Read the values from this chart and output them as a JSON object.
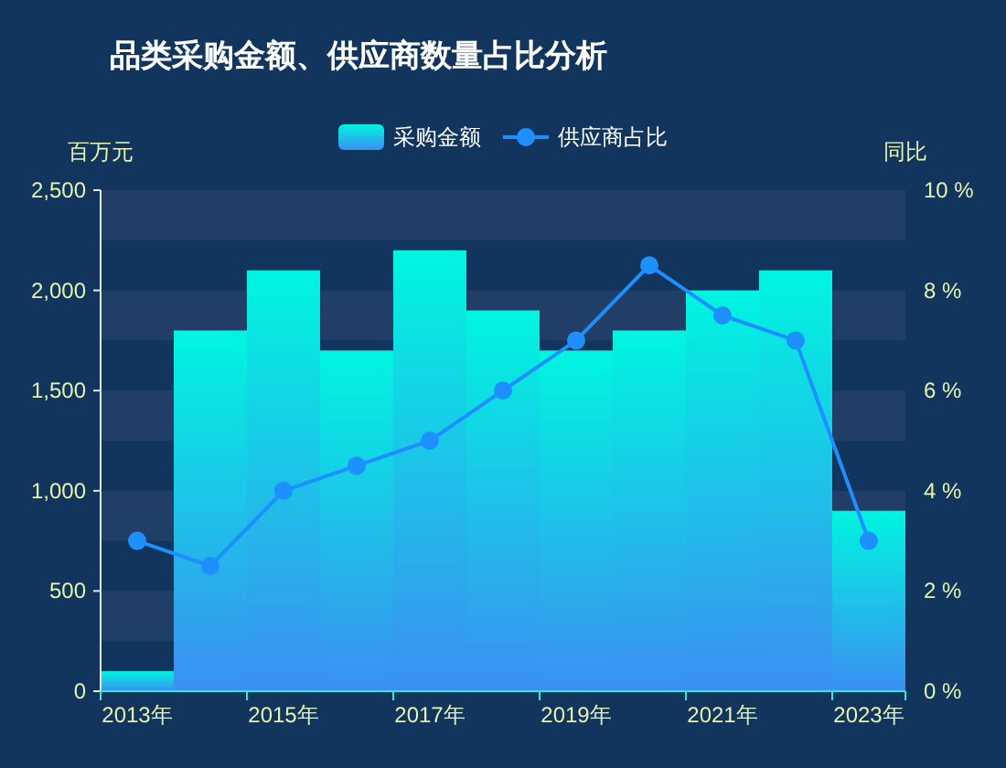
{
  "chart_data": {
    "type": "bar",
    "title": "品类采购金额、供应商数量占比分析",
    "categories": [
      "2013年",
      null,
      "2015年",
      null,
      "2017年",
      null,
      "2019年",
      null,
      "2021年",
      null,
      "2023年"
    ],
    "series": [
      {
        "name": "采购金额",
        "color": "#00f5e0",
        "values": [
          100,
          1800,
          2100,
          1700,
          2200,
          1900,
          1700,
          1800,
          2000,
          2100,
          900
        ]
      },
      {
        "name": "供应商占比",
        "type": "line",
        "axis": "y2",
        "color": "#1e8fff",
        "values": [
          3,
          2.5,
          4,
          4.5,
          5,
          6,
          7,
          8.5,
          7.5,
          7,
          3
        ]
      }
    ],
    "ylabel": "百万元",
    "y2label": "同比",
    "ylim": [
      0,
      2500
    ],
    "yticks": [
      0,
      500,
      {
        "value": 1000,
        "label": "1,000"
      },
      {
        "value": 1500,
        "label": "1,500"
      },
      {
        "value": 2000,
        "label": "2,000"
      },
      {
        "value": 2500,
        "label": "2,500"
      }
    ],
    "y2lim": [
      0,
      10
    ],
    "y2ticks": [
      {
        "value": 0,
        "label": "0 %"
      },
      {
        "value": 2,
        "label": "2 %"
      },
      {
        "value": 4,
        "label": "4 %"
      },
      {
        "value": 6,
        "label": "6 %"
      },
      {
        "value": 8,
        "label": "8 %"
      },
      {
        "value": 10,
        "label": "10 %"
      }
    ],
    "bands": [
      {
        "axis": "y",
        "from": 250,
        "to": 500,
        "color": "#213f66"
      },
      {
        "axis": "y",
        "from": 750,
        "to": 1000,
        "color": "#213f66"
      },
      {
        "axis": "y",
        "from": 1250,
        "to": 1500,
        "color": "#213f66"
      },
      {
        "axis": "y",
        "from": 1750,
        "to": 2000,
        "color": "#213f66"
      },
      {
        "axis": "y",
        "from": 2250,
        "to": 2500,
        "color": "#213f66"
      }
    ],
    "legend": "top",
    "marker": "circle"
  }
}
